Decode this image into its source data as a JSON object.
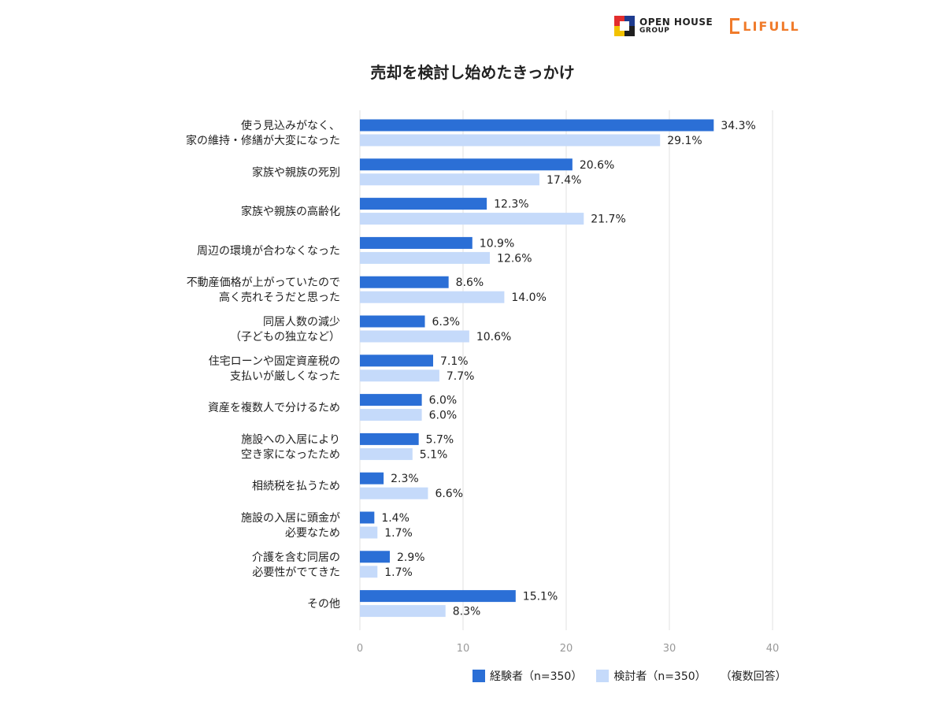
{
  "logos": {
    "openhouse_line1": "OPEN HOUSE",
    "openhouse_line2": "GROUP",
    "lifull": "LIFULL"
  },
  "colors": {
    "series1": "#2b6fd6",
    "series2": "#c5dafa",
    "grid": "#e2e2e2",
    "lifull": "#f07b2b"
  },
  "chart_data": {
    "type": "bar",
    "orientation": "horizontal",
    "title": "売却を検討し始めたきっかけ",
    "categories": [
      [
        "使う見込みがなく、",
        "家の維持・修繕が大変になった"
      ],
      [
        "家族や親族の死別"
      ],
      [
        "家族や親族の高齢化"
      ],
      [
        "周辺の環境が合わなくなった"
      ],
      [
        "不動産価格が上がっていたので",
        "高く売れそうだと思った"
      ],
      [
        "同居人数の減少",
        "（子どもの独立など）"
      ],
      [
        "住宅ローンや固定資産税の",
        "支払いが厳しくなった"
      ],
      [
        "資産を複数人で分けるため"
      ],
      [
        "施設への入居により",
        "空き家になったため"
      ],
      [
        "相続税を払うため"
      ],
      [
        "施設の入居に頭金が",
        "必要なため"
      ],
      [
        "介護を含む同居の",
        "必要性がでてきた"
      ],
      [
        "その他"
      ]
    ],
    "series": [
      {
        "name": "経験者（n=350）",
        "values": [
          34.3,
          20.6,
          12.3,
          10.9,
          8.6,
          6.3,
          7.1,
          6.0,
          5.7,
          2.3,
          1.4,
          2.9,
          15.1
        ]
      },
      {
        "name": "検討者（n=350）",
        "values": [
          29.1,
          17.4,
          21.7,
          12.6,
          14.0,
          10.6,
          7.7,
          6.0,
          5.1,
          6.6,
          1.7,
          1.7,
          8.3
        ]
      }
    ],
    "value_suffix": "%",
    "xlim": [
      0,
      40
    ],
    "xticks": [
      0,
      10,
      20,
      30,
      40
    ],
    "grid": true,
    "legend_note": "（複数回答）",
    "legend_position": "bottom-right"
  }
}
